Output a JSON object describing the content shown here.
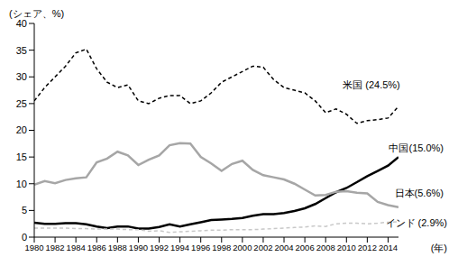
{
  "chart_data": {
    "type": "line",
    "y_label": "(シェア、%)",
    "x_label": "(年)",
    "x": [
      1980,
      1981,
      1982,
      1983,
      1984,
      1985,
      1986,
      1987,
      1988,
      1989,
      1990,
      1991,
      1992,
      1993,
      1994,
      1995,
      1996,
      1997,
      1998,
      1999,
      2000,
      2001,
      2002,
      2003,
      2004,
      2005,
      2006,
      2007,
      2008,
      2009,
      2010,
      2011,
      2012,
      2013,
      2014,
      2015
    ],
    "xlim": [
      1980,
      2015
    ],
    "xticks": [
      1980,
      1982,
      1984,
      1986,
      1988,
      1990,
      1992,
      1994,
      1996,
      1998,
      2000,
      2002,
      2004,
      2006,
      2008,
      2010,
      2012,
      2014
    ],
    "ylim": [
      0,
      40
    ],
    "yticks": [
      0,
      5,
      10,
      15,
      20,
      25,
      30,
      35,
      40
    ],
    "grid": false,
    "series": [
      {
        "name": "米国 (24.5%)",
        "color": "#000000",
        "line_style": "dashed",
        "values": [
          25.5,
          28,
          30,
          32,
          34.5,
          35.2,
          31.5,
          29,
          28,
          28.5,
          25.5,
          25,
          26,
          26.5,
          26.5,
          25,
          25.5,
          27,
          29,
          30,
          31,
          32,
          31.8,
          29.5,
          28,
          27.5,
          27,
          25.5,
          23.3,
          24,
          23,
          21.3,
          21.8,
          22,
          22.3,
          24.5
        ]
      },
      {
        "name": "中国(15.0%)",
        "color": "#000000",
        "line_style": "solid",
        "values": [
          2.7,
          2.5,
          2.5,
          2.6,
          2.6,
          2.4,
          2,
          1.7,
          2,
          2,
          1.6,
          1.6,
          1.9,
          2.4,
          2,
          2.4,
          2.8,
          3.2,
          3.3,
          3.4,
          3.6,
          4,
          4.3,
          4.3,
          4.5,
          4.9,
          5.4,
          6.2,
          7.3,
          8.4,
          9.2,
          10.3,
          11.4,
          12.4,
          13.4,
          15.0
        ]
      },
      {
        "name": "日本(5.6%)",
        "color": "#a6a6a6",
        "line_style": "solid",
        "values": [
          9.8,
          10.5,
          10.1,
          10.7,
          11,
          11.2,
          14,
          14.7,
          16,
          15.3,
          13.5,
          14.5,
          15.3,
          17.2,
          17.6,
          17.5,
          15,
          13.8,
          12.4,
          13.7,
          14.3,
          12.6,
          11.6,
          11.2,
          10.8,
          10,
          8.9,
          7.8,
          7.9,
          8.5,
          8.6,
          8.3,
          8.2,
          6.6,
          6,
          5.6
        ]
      },
      {
        "name": "インド (2.9%)",
        "color": "#c8c8c8",
        "line_style": "dashed",
        "values": [
          1.7,
          1.7,
          1.7,
          1.7,
          1.6,
          1.6,
          1.5,
          1.5,
          1.5,
          1.4,
          1.4,
          1.1,
          1.2,
          0.9,
          1,
          1.1,
          1.2,
          1.3,
          1.3,
          1.4,
          1.4,
          1.4,
          1.5,
          1.6,
          1.7,
          1.8,
          1.9,
          2.1,
          2,
          2.5,
          2.6,
          2.6,
          2.5,
          2.6,
          2.8,
          2.9
        ]
      }
    ]
  }
}
